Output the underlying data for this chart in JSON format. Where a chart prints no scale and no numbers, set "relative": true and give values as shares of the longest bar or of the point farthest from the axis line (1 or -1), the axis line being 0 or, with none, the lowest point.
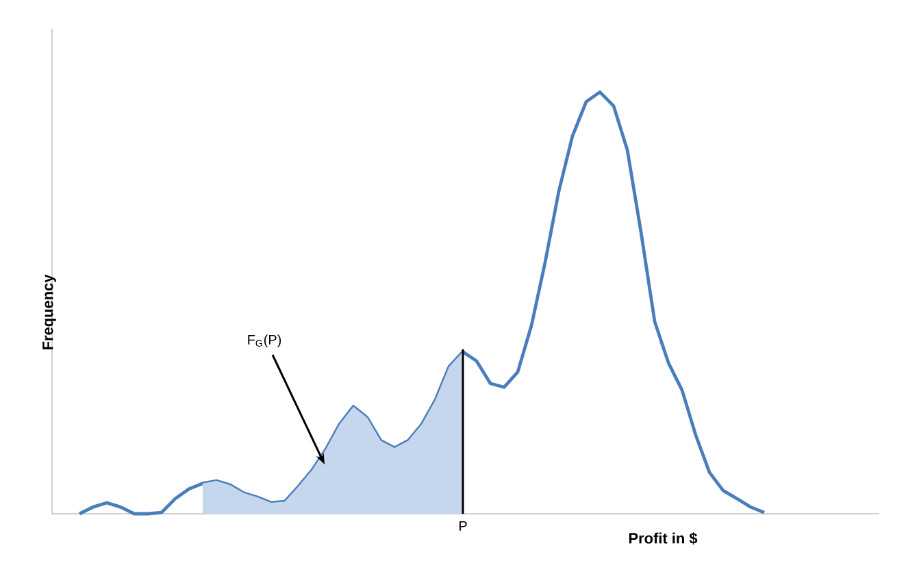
{
  "chart_data": {
    "type": "line",
    "relative": true,
    "xlabel": "Profit in $",
    "ylabel": "Frequency",
    "categories": [
      null,
      null,
      null,
      null,
      null,
      null,
      null,
      null,
      null,
      null,
      null,
      null,
      null,
      null,
      null,
      null,
      null,
      null,
      null,
      null,
      null,
      null,
      null,
      null,
      null,
      null,
      null,
      null,
      null,
      null,
      null,
      null,
      null,
      null,
      null,
      null,
      null,
      null,
      null,
      null,
      null,
      null,
      null,
      null,
      null,
      null,
      null,
      null,
      null,
      null,
      null
    ],
    "series": [
      {
        "color": "#4a7ebb",
        "values": [
          0,
          0.016,
          0.026,
          0.016,
          0,
          0,
          0.003,
          0.036,
          0.059,
          0.072,
          0.078,
          0.068,
          0.049,
          0.039,
          0.026,
          0.029,
          0.065,
          0.104,
          0.153,
          0.212,
          0.254,
          0.228,
          0.173,
          0.156,
          0.173,
          0.212,
          0.27,
          0.349,
          0.384,
          0.362,
          0.309,
          0.3,
          0.336,
          0.446,
          0.596,
          0.765,
          0.896,
          0.977,
          1,
          0.967,
          0.863,
          0.668,
          0.456,
          0.358,
          0.293,
          0.186,
          0.098,
          0.055,
          0.036,
          0.016,
          0.003
        ]
      },
      {
        "type": "area",
        "color": "#c6d6ec",
        "values": [
          null,
          null,
          null,
          null,
          null,
          null,
          null,
          null,
          null,
          0.072,
          0.078,
          0.068,
          0.049,
          0.039,
          0.026,
          0.029,
          0.065,
          0.104,
          0.153,
          0.212,
          0.254,
          0.228,
          0.173,
          0.156,
          0.173,
          0.212,
          0.27,
          0.349,
          0.384,
          null,
          null,
          null,
          null,
          null,
          null,
          null,
          null,
          null,
          null,
          null,
          null,
          null,
          null,
          null,
          null,
          null,
          null,
          null,
          null,
          null,
          null
        ]
      }
    ],
    "annotations": [
      "F$_{G}$(P)",
      "P"
    ],
    "grid": false,
    "marker": "none",
    "line_style": "solid"
  }
}
